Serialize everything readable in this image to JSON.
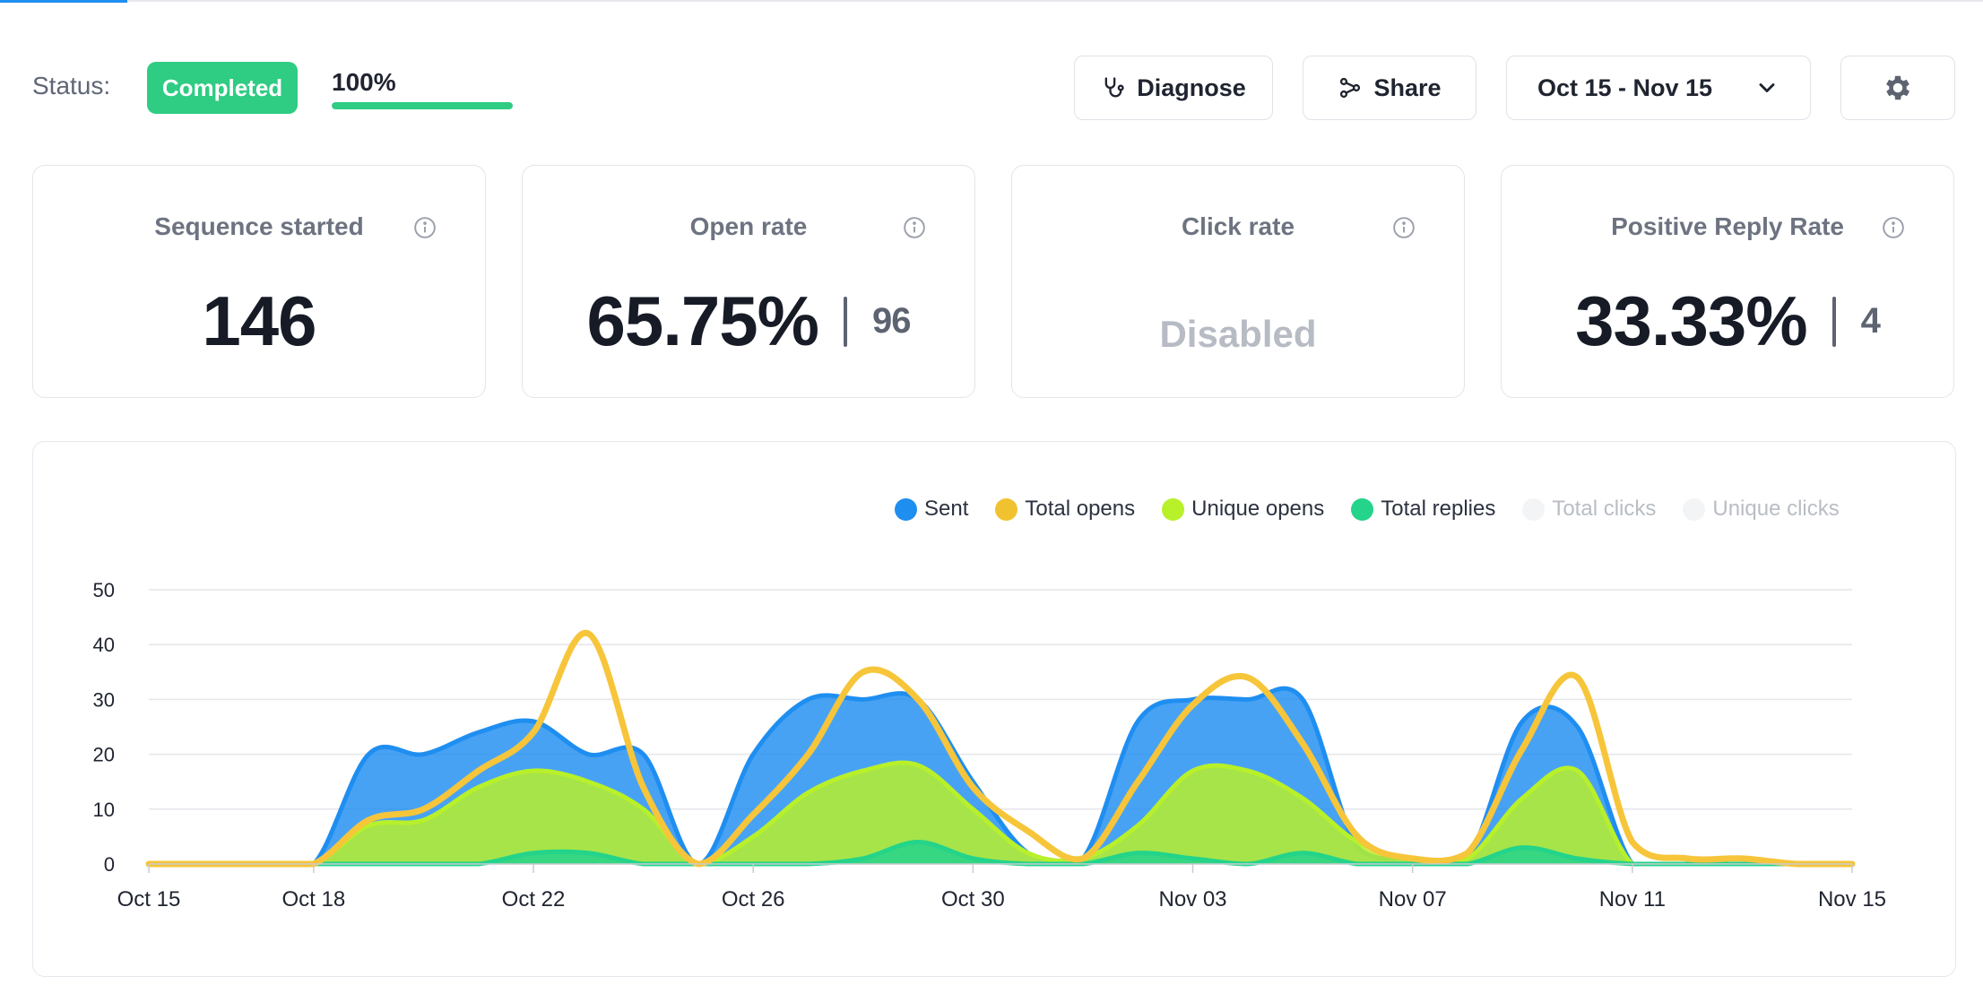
{
  "status": {
    "label": "Status:",
    "badge": "Completed",
    "progress_label": "100%",
    "progress_value": 100
  },
  "toolbar": {
    "diagnose": "Diagnose",
    "share": "Share",
    "date_range": "Oct 15 - Nov 15"
  },
  "cards": [
    {
      "title": "Sequence started",
      "value": "146"
    },
    {
      "title": "Open rate",
      "value": "65.75%",
      "secondary": "96"
    },
    {
      "title": "Click rate",
      "value": "Disabled"
    },
    {
      "title": "Positive Reply Rate",
      "value": "33.33%",
      "secondary": "4"
    }
  ],
  "legend": [
    {
      "label": "Sent",
      "color": "#1f8ef1"
    },
    {
      "label": "Total opens",
      "color": "#f0c230"
    },
    {
      "label": "Unique opens",
      "color": "#b8f02a"
    },
    {
      "label": "Total replies",
      "color": "#23d48a"
    },
    {
      "label": "Total clicks",
      "color": "#f3f4f6"
    },
    {
      "label": "Unique clicks",
      "color": "#f3f4f6"
    }
  ],
  "chart_data": {
    "type": "area",
    "x": [
      "Oct 15",
      "Oct 16",
      "Oct 17",
      "Oct 18",
      "Oct 19",
      "Oct 20",
      "Oct 21",
      "Oct 22",
      "Oct 23",
      "Oct 24",
      "Oct 25",
      "Oct 26",
      "Oct 27",
      "Oct 28",
      "Oct 29",
      "Oct 30",
      "Oct 31",
      "Nov 01",
      "Nov 02",
      "Nov 03",
      "Nov 04",
      "Nov 05",
      "Nov 06",
      "Nov 07",
      "Nov 08",
      "Nov 09",
      "Nov 10",
      "Nov 11",
      "Nov 12",
      "Nov 13",
      "Nov 14",
      "Nov 15"
    ],
    "x_tick_labels": [
      "Oct 15",
      "Oct 18",
      "Oct 22",
      "Oct 26",
      "Oct 30",
      "Nov 03",
      "Nov 07",
      "Nov 11",
      "Nov 15"
    ],
    "y_ticks": [
      0,
      10,
      20,
      30,
      40,
      50
    ],
    "ylim": [
      0,
      50
    ],
    "grid": true,
    "legend_position": "top-right",
    "series": [
      {
        "name": "Sent",
        "color": "#1f8ef1",
        "values": [
          0,
          0,
          0,
          0,
          20,
          20,
          24,
          26,
          20,
          20,
          0,
          20,
          30,
          30,
          30,
          15,
          2,
          1,
          26,
          30,
          30,
          30,
          3,
          1,
          1,
          26,
          25,
          0,
          0,
          0,
          0,
          0
        ]
      },
      {
        "name": "Unique opens",
        "color": "#b8f02a",
        "values": [
          0,
          0,
          0,
          0,
          7,
          8,
          14,
          17,
          15,
          10,
          0,
          5,
          13,
          17,
          18,
          10,
          2,
          1,
          7,
          17,
          17,
          12,
          4,
          1,
          1,
          12,
          17,
          0,
          0,
          0,
          0,
          0
        ]
      },
      {
        "name": "Total replies",
        "color": "#23d48a",
        "values": [
          0,
          0,
          0,
          0,
          0,
          0,
          0,
          2,
          2,
          0,
          0,
          0,
          0,
          1,
          4,
          1,
          0,
          0,
          2,
          1,
          0,
          2,
          0,
          0,
          0,
          3,
          1,
          0,
          0,
          0,
          0,
          0
        ]
      },
      {
        "name": "Total opens",
        "color": "#f0c230",
        "values": [
          0,
          0,
          0,
          0,
          8,
          10,
          17,
          24,
          42,
          14,
          0,
          9,
          20,
          35,
          30,
          14,
          6,
          1,
          15,
          29,
          34,
          22,
          5,
          1,
          2,
          21,
          34,
          4,
          1,
          1,
          0,
          0
        ]
      }
    ]
  }
}
